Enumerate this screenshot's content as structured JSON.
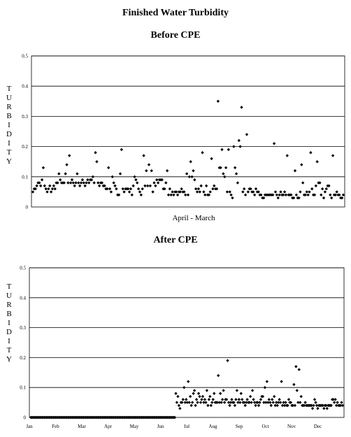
{
  "title": "Finished Water Turbidity",
  "chart_data": [
    {
      "type": "scatter",
      "title": "Before CPE",
      "ylabel": "TURBIDITY",
      "xlabel": "April - March",
      "ylim": [
        0,
        0.5
      ],
      "yticks": [
        "0",
        "0.1",
        "0.2",
        "0.3",
        "0.4",
        "0.5"
      ],
      "grid": true,
      "marker_color": "#000000",
      "values": [
        0.05,
        0.06,
        0.06,
        0.07,
        0.08,
        0.08,
        0.07,
        0.09,
        0.13,
        0.07,
        0.06,
        0.05,
        0.06,
        0.07,
        0.05,
        0.06,
        0.07,
        0.06,
        0.08,
        0.08,
        0.11,
        0.09,
        0.08,
        0.08,
        0.08,
        0.11,
        0.14,
        0.08,
        0.17,
        0.08,
        0.09,
        0.08,
        0.07,
        0.08,
        0.11,
        0.08,
        0.07,
        0.08,
        0.09,
        0.08,
        0.07,
        0.08,
        0.09,
        0.08,
        0.09,
        0.09,
        0.1,
        0.08,
        0.18,
        0.15,
        0.08,
        0.07,
        0.08,
        0.08,
        0.07,
        0.07,
        0.06,
        0.06,
        0.13,
        0.06,
        0.05,
        0.1,
        0.08,
        0.07,
        0.06,
        0.04,
        0.04,
        0.11,
        0.19,
        0.06,
        0.05,
        0.06,
        0.06,
        0.06,
        0.05,
        0.06,
        0.04,
        0.07,
        0.1,
        0.09,
        0.08,
        0.06,
        0.05,
        0.04,
        0.06,
        0.17,
        0.07,
        0.12,
        0.07,
        0.14,
        0.07,
        0.12,
        0.05,
        0.08,
        0.07,
        0.09,
        0.08,
        0.09,
        0.09,
        0.09,
        0.06,
        0.06,
        0.08,
        0.12,
        0.04,
        0.06,
        0.04,
        0.05,
        0.04,
        0.05,
        0.05,
        0.04,
        0.05,
        0.05,
        0.06,
        0.05,
        0.05,
        0.04,
        0.11,
        0.04,
        0.1,
        0.15,
        0.1,
        0.12,
        0.09,
        0.06,
        0.05,
        0.06,
        0.05,
        0.07,
        0.18,
        0.05,
        0.04,
        0.07,
        0.04,
        0.04,
        0.05,
        0.16,
        0.06,
        0.07,
        0.06,
        0.06,
        0.35,
        0.13,
        0.13,
        0.19,
        0.11,
        0.1,
        0.13,
        0.05,
        0.19,
        0.05,
        0.04,
        0.03,
        0.2,
        0.13,
        0.11,
        0.08,
        0.22,
        0.2,
        0.33,
        0.05,
        0.06,
        0.04,
        0.24,
        0.05,
        0.06,
        0.06,
        0.05,
        0.05,
        0.04,
        0.06,
        0.05,
        0.05,
        0.04,
        0.04,
        0.03,
        0.03,
        0.04,
        0.04,
        0.04,
        0.04,
        0.04,
        0.04,
        0.04,
        0.21,
        0.05,
        0.04,
        0.03,
        0.04,
        0.05,
        0.04,
        0.04,
        0.05,
        0.04,
        0.17,
        0.04,
        0.04,
        0.04,
        0.03,
        0.03,
        0.12,
        0.04,
        0.03,
        0.03,
        0.05,
        0.14,
        0.08,
        0.04,
        0.04,
        0.05,
        0.04,
        0.05,
        0.18,
        0.06,
        0.04,
        0.04,
        0.07,
        0.15,
        0.08,
        0.08,
        0.04,
        0.06,
        0.03,
        0.05,
        0.06,
        0.07,
        0.07,
        0.04,
        0.03,
        0.17,
        0.04,
        0.04,
        0.05,
        0.04,
        0.04,
        0.03,
        0.03,
        0.04
      ]
    },
    {
      "type": "scatter",
      "title": "After CPE",
      "ylabel": "TURBIDITY",
      "xlabel": "",
      "ylim": [
        0,
        0.5
      ],
      "yticks": [
        "0",
        "0.1",
        "0.2",
        "0.3",
        "0.4",
        "0.5"
      ],
      "categories": [
        "Jan",
        "Feb",
        "Mar",
        "Apr",
        "May",
        "Jun",
        "Jul",
        "Aug",
        "Sep",
        "Oct",
        "Nov",
        "Dec"
      ],
      "grid": true,
      "marker_color": "#000000",
      "values": [
        0,
        0,
        0,
        0,
        0,
        0,
        0,
        0,
        0,
        0,
        0,
        0,
        0,
        0,
        0,
        0,
        0,
        0,
        0,
        0,
        0,
        0,
        0,
        0,
        0,
        0,
        0,
        0,
        0,
        0,
        0,
        0,
        0,
        0,
        0,
        0,
        0,
        0,
        0,
        0,
        0,
        0,
        0,
        0,
        0,
        0,
        0,
        0,
        0,
        0,
        0,
        0,
        0,
        0,
        0,
        0,
        0,
        0,
        0,
        0,
        0,
        0,
        0,
        0,
        0,
        0,
        0,
        0,
        0,
        0,
        0,
        0,
        0,
        0,
        0,
        0,
        0,
        0,
        0,
        0,
        0,
        0,
        0,
        0,
        0,
        0,
        0,
        0,
        0,
        0,
        0,
        0,
        0,
        0,
        0,
        0,
        0,
        0,
        0,
        0,
        0,
        0,
        0,
        0,
        0,
        0,
        0,
        0,
        0,
        0,
        0,
        0,
        0,
        0,
        0,
        0,
        0,
        0,
        0,
        0,
        0,
        0,
        0,
        0,
        0,
        0,
        0,
        0,
        0,
        0,
        0,
        0,
        0,
        0,
        0,
        0,
        0,
        0,
        0,
        0,
        0.08,
        0.05,
        0.07,
        0.04,
        0.03,
        0.05,
        0.05,
        0.06,
        0.1,
        0.05,
        0.06,
        0.05,
        0.12,
        0.05,
        0.07,
        0.04,
        0.05,
        0.08,
        0.09,
        0.04,
        0.06,
        0.05,
        0.08,
        0.07,
        0.05,
        0.06,
        0.07,
        0.05,
        0.06,
        0.05,
        0.09,
        0.04,
        0.06,
        0.07,
        0.04,
        0.05,
        0.06,
        0.08,
        0.05,
        0.05,
        0.05,
        0.14,
        0.05,
        0.08,
        0.05,
        0.06,
        0.09,
        0.05,
        0.06,
        0.06,
        0.19,
        0.05,
        0.04,
        0.05,
        0.06,
        0.05,
        0.05,
        0.04,
        0.06,
        0.09,
        0.05,
        0.06,
        0.05,
        0.08,
        0.06,
        0.05,
        0.05,
        0.04,
        0.05,
        0.06,
        0.05,
        0.05,
        0.07,
        0.05,
        0.09,
        0.06,
        0.05,
        0.04,
        0.05,
        0.05,
        0.04,
        0.05,
        0.06,
        0.07,
        0.07,
        0.05,
        0.1,
        0.05,
        0.12,
        0.05,
        0.06,
        0.05,
        0.04,
        0.06,
        0.05,
        0.07,
        0.04,
        0.05,
        0.04,
        0.05,
        0.06,
        0.05,
        0.12,
        0.04,
        0.05,
        0.04,
        0.05,
        0.04,
        0.04,
        0.06,
        0.05,
        0.05,
        0.04,
        0.04,
        0.11,
        0.04,
        0.17,
        0.09,
        0.05,
        0.16,
        0.05,
        0.07,
        0.04,
        0.04,
        0.04,
        0.05,
        0.04,
        0.04,
        0.04,
        0.04,
        0.04,
        0.04,
        0.03,
        0.04,
        0.06,
        0.05,
        0.04,
        0.03,
        0.04,
        0.04,
        0.04,
        0.04,
        0.04,
        0.03,
        0.04,
        0.04,
        0.03,
        0.04,
        0.04,
        0.04,
        0.04,
        0.06,
        0.06,
        0.05,
        0.06,
        0.04,
        0.05,
        0.04,
        0.04,
        0.04,
        0.05,
        0.04
      ]
    }
  ]
}
